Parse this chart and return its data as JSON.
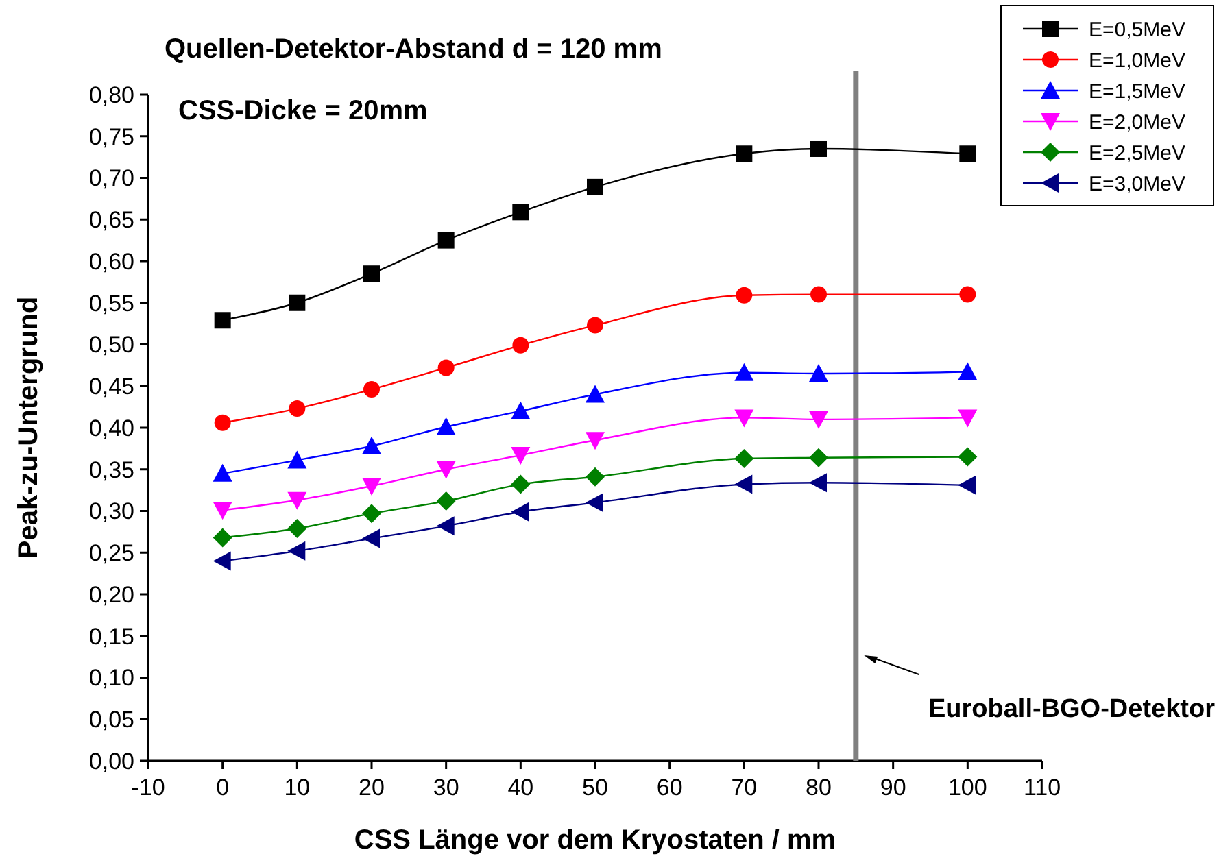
{
  "chart_data": {
    "type": "line",
    "title": "Quellen-Detektor-Abstand d = 120 mm",
    "subtitle": "CSS-Dicke = 20mm",
    "xlabel": "CSS Länge vor dem Kryostaten / mm",
    "ylabel": "Peak-zu-Untergrund",
    "x": [
      0,
      10,
      20,
      30,
      40,
      50,
      70,
      80,
      100
    ],
    "series": [
      {
        "name": "E=0,5MeV",
        "color": "#000000",
        "marker": "square",
        "values": [
          0.529,
          0.55,
          0.585,
          0.625,
          0.659,
          0.689,
          0.729,
          0.735,
          0.729
        ]
      },
      {
        "name": "E=1,0MeV",
        "color": "#ff0000",
        "marker": "circle",
        "values": [
          0.406,
          0.423,
          0.446,
          0.472,
          0.499,
          0.523,
          0.559,
          0.56,
          0.56
        ]
      },
      {
        "name": "E=1,5MeV",
        "color": "#0000ff",
        "marker": "triangle",
        "values": [
          0.345,
          0.361,
          0.378,
          0.401,
          0.42,
          0.44,
          0.466,
          0.465,
          0.467
        ]
      },
      {
        "name": "E=2,0MeV",
        "color": "#ff00ff",
        "marker": "triangle-down",
        "values": [
          0.301,
          0.313,
          0.33,
          0.35,
          0.367,
          0.385,
          0.412,
          0.41,
          0.412
        ]
      },
      {
        "name": "E=2,5MeV",
        "color": "#008000",
        "marker": "diamond",
        "values": [
          0.268,
          0.279,
          0.297,
          0.312,
          0.332,
          0.341,
          0.363,
          0.364,
          0.365
        ]
      },
      {
        "name": "E=3,0MeV",
        "color": "#000080",
        "marker": "triangle-left",
        "values": [
          0.24,
          0.252,
          0.267,
          0.282,
          0.299,
          0.31,
          0.332,
          0.334,
          0.331
        ]
      }
    ],
    "xlim": [
      -10,
      110
    ],
    "xticks": [
      -10,
      0,
      10,
      20,
      30,
      40,
      50,
      60,
      70,
      80,
      90,
      100,
      110
    ],
    "ylim": [
      0,
      0.8
    ],
    "yticks": [
      {
        "value": 0,
        "label": "0,00"
      },
      {
        "value": 0.05,
        "label": "0,05"
      },
      {
        "value": 0.1,
        "label": "0,10"
      },
      {
        "value": 0.15,
        "label": "0,15"
      },
      {
        "value": 0.2,
        "label": "0,20"
      },
      {
        "value": 0.25,
        "label": "0,25"
      },
      {
        "value": 0.3,
        "label": "0,30"
      },
      {
        "value": 0.35,
        "label": "0,35"
      },
      {
        "value": 0.4,
        "label": "0,40"
      },
      {
        "value": 0.45,
        "label": "0,45"
      },
      {
        "value": 0.5,
        "label": "0,50"
      },
      {
        "value": 0.55,
        "label": "0,55"
      },
      {
        "value": 0.6,
        "label": "0,60"
      },
      {
        "value": 0.65,
        "label": "0,65"
      },
      {
        "value": 0.7,
        "label": "0,70"
      },
      {
        "value": 0.75,
        "label": "0,75"
      },
      {
        "value": 0.8,
        "label": "0,80"
      }
    ],
    "ref_lines": [
      {
        "axis": "x",
        "value": 85,
        "color": "#808080"
      }
    ],
    "annotations": [
      "Euroball-BGO-Detektor"
    ],
    "legend": "top right",
    "grid": false
  }
}
